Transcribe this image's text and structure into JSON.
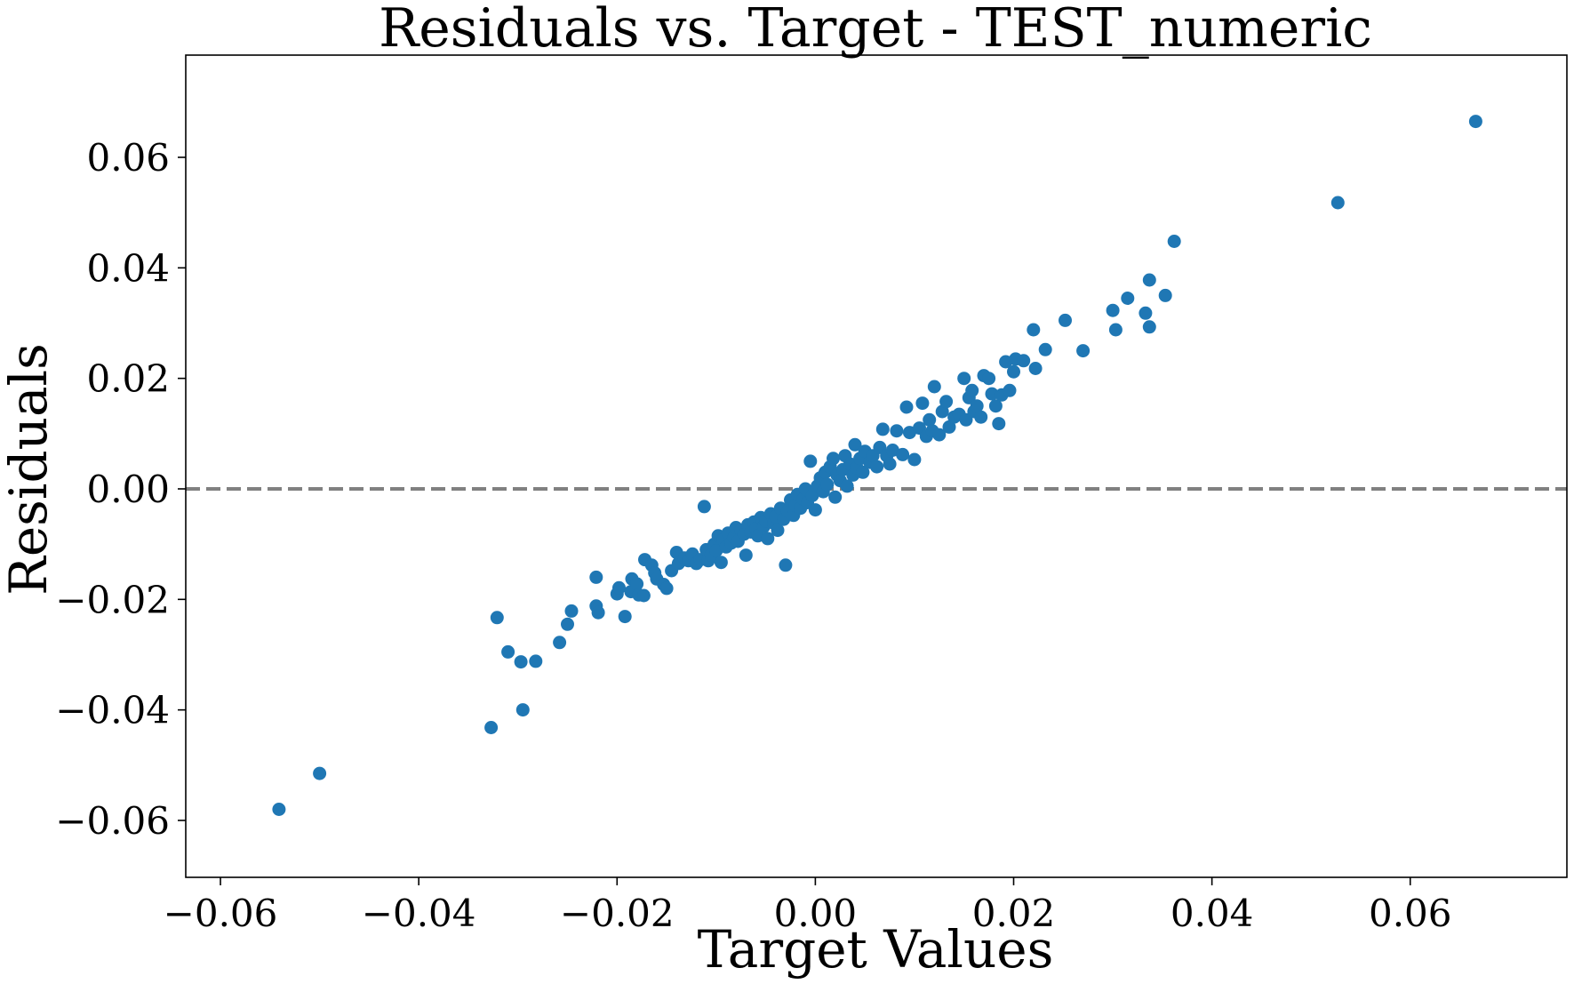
{
  "chart_data": {
    "type": "scatter",
    "title": "Residuals vs. Target - TEST_numeric",
    "xlabel": "Target Values",
    "ylabel": "Residuals",
    "xlim": [
      -0.0635,
      0.0758
    ],
    "ylim": [
      -0.0703,
      0.0785
    ],
    "xticks": [
      -0.06,
      -0.04,
      -0.02,
      0.0,
      0.02,
      0.04,
      0.06
    ],
    "yticks": [
      -0.06,
      -0.04,
      -0.02,
      0.0,
      0.02,
      0.04,
      0.06
    ],
    "xtick_labels": [
      "−0.06",
      "−0.04",
      "−0.02",
      "0.00",
      "0.02",
      "0.04",
      "0.06"
    ],
    "ytick_labels": [
      "−0.06",
      "−0.04",
      "−0.02",
      "0.00",
      "0.02",
      "0.04",
      "0.06"
    ],
    "grid": false,
    "reference_line": {
      "y": 0,
      "style": "dashed",
      "color": "#808080"
    },
    "series": [
      {
        "color": "#1f77b4",
        "points": [
          [
            -0.0541,
            -0.058
          ],
          [
            -0.05,
            -0.0515
          ],
          [
            -0.0327,
            -0.0432
          ],
          [
            -0.0321,
            -0.0233
          ],
          [
            -0.031,
            -0.0295
          ],
          [
            -0.0297,
            -0.0313
          ],
          [
            -0.0295,
            -0.04
          ],
          [
            -0.0282,
            -0.0312
          ],
          [
            -0.0258,
            -0.0278
          ],
          [
            -0.025,
            -0.0245
          ],
          [
            -0.0246,
            -0.0221
          ],
          [
            -0.0221,
            -0.016
          ],
          [
            -0.0221,
            -0.0212
          ],
          [
            -0.0219,
            -0.0224
          ],
          [
            -0.02,
            -0.019
          ],
          [
            -0.0198,
            -0.0179
          ],
          [
            -0.0192,
            -0.0231
          ],
          [
            -0.0186,
            -0.0186
          ],
          [
            -0.0185,
            -0.0163
          ],
          [
            -0.018,
            -0.0172
          ],
          [
            -0.0178,
            -0.0192
          ],
          [
            -0.0173,
            -0.0193
          ],
          [
            -0.0172,
            -0.0128
          ],
          [
            -0.0165,
            -0.0138
          ],
          [
            -0.0162,
            -0.0152
          ],
          [
            -0.016,
            -0.0163
          ],
          [
            -0.0153,
            -0.0173
          ],
          [
            -0.015,
            -0.018
          ],
          [
            -0.0145,
            -0.0148
          ],
          [
            -0.014,
            -0.0115
          ],
          [
            -0.0138,
            -0.0135
          ],
          [
            -0.0132,
            -0.0125
          ],
          [
            -0.0128,
            -0.013
          ],
          [
            -0.0124,
            -0.0118
          ],
          [
            -0.012,
            -0.0135
          ],
          [
            -0.0116,
            -0.0128
          ],
          [
            -0.0112,
            -0.0032
          ],
          [
            -0.011,
            -0.011
          ],
          [
            -0.0108,
            -0.013
          ],
          [
            -0.0105,
            -0.012
          ],
          [
            -0.0102,
            -0.01
          ],
          [
            -0.01,
            -0.0112
          ],
          [
            -0.0098,
            -0.0085
          ],
          [
            -0.0095,
            -0.0133
          ],
          [
            -0.0093,
            -0.0092
          ],
          [
            -0.009,
            -0.0105
          ],
          [
            -0.0088,
            -0.008
          ],
          [
            -0.0085,
            -0.0098
          ],
          [
            -0.0082,
            -0.0088
          ],
          [
            -0.008,
            -0.007
          ],
          [
            -0.0078,
            -0.0095
          ],
          [
            -0.0075,
            -0.0075
          ],
          [
            -0.0072,
            -0.0082
          ],
          [
            -0.007,
            -0.012
          ],
          [
            -0.0068,
            -0.0065
          ],
          [
            -0.0065,
            -0.0078
          ],
          [
            -0.0062,
            -0.006
          ],
          [
            -0.006,
            -0.0072
          ],
          [
            -0.0058,
            -0.0085
          ],
          [
            -0.0055,
            -0.0052
          ],
          [
            -0.0052,
            -0.0068
          ],
          [
            -0.005,
            -0.0058
          ],
          [
            -0.0048,
            -0.009
          ],
          [
            -0.0045,
            -0.0045
          ],
          [
            -0.0042,
            -0.0062
          ],
          [
            -0.004,
            -0.005
          ],
          [
            -0.0038,
            -0.0075
          ],
          [
            -0.0035,
            -0.0035
          ],
          [
            -0.0032,
            -0.0055
          ],
          [
            -0.003,
            -0.0138
          ],
          [
            -0.0028,
            -0.004
          ],
          [
            -0.0025,
            -0.002
          ],
          [
            -0.0022,
            -0.0048
          ],
          [
            -0.002,
            -0.003
          ],
          [
            -0.0018,
            -0.001
          ],
          [
            -0.0015,
            -0.0035
          ],
          [
            -0.0012,
            -0.0018
          ],
          [
            -0.001,
            0.0
          ],
          [
            -0.0008,
            -0.0025
          ],
          [
            -0.0005,
            0.005
          ],
          [
            -0.0003,
            -0.0012
          ],
          [
            0.0,
            -0.0038
          ],
          [
            0.0002,
            0.0005
          ],
          [
            0.0005,
            0.002
          ],
          [
            0.0008,
            -0.0005
          ],
          [
            0.001,
            0.003
          ],
          [
            0.0012,
            0.0008
          ],
          [
            0.0015,
            0.004
          ],
          [
            0.0018,
            0.0055
          ],
          [
            0.002,
            -0.0015
          ],
          [
            0.0022,
            0.0025
          ],
          [
            0.0025,
            0.0015
          ],
          [
            0.0028,
            0.0035
          ],
          [
            0.003,
            0.006
          ],
          [
            0.0032,
            0.0005
          ],
          [
            0.0035,
            0.0045
          ],
          [
            0.0038,
            0.0025
          ],
          [
            0.004,
            0.008
          ],
          [
            0.0042,
            0.0038
          ],
          [
            0.0045,
            0.0055
          ],
          [
            0.0048,
            0.003
          ],
          [
            0.005,
            0.0068
          ],
          [
            0.0055,
            0.0048
          ],
          [
            0.0058,
            0.006
          ],
          [
            0.0062,
            0.004
          ],
          [
            0.0065,
            0.0075
          ],
          [
            0.0068,
            0.0108
          ],
          [
            0.0072,
            0.006
          ],
          [
            0.0075,
            0.0045
          ],
          [
            0.0078,
            0.007
          ],
          [
            0.0082,
            0.0105
          ],
          [
            0.0088,
            0.0062
          ],
          [
            0.0092,
            0.0148
          ],
          [
            0.0095,
            0.0102
          ],
          [
            0.01,
            0.0053
          ],
          [
            0.0105,
            0.011
          ],
          [
            0.0108,
            0.0155
          ],
          [
            0.0112,
            0.0095
          ],
          [
            0.0115,
            0.0125
          ],
          [
            0.0118,
            0.0105
          ],
          [
            0.012,
            0.0185
          ],
          [
            0.0125,
            0.0098
          ],
          [
            0.0128,
            0.014
          ],
          [
            0.0132,
            0.0158
          ],
          [
            0.0135,
            0.0112
          ],
          [
            0.014,
            0.013
          ],
          [
            0.0145,
            0.0135
          ],
          [
            0.015,
            0.02
          ],
          [
            0.0152,
            0.0125
          ],
          [
            0.0155,
            0.0165
          ],
          [
            0.0158,
            0.0178
          ],
          [
            0.016,
            0.014
          ],
          [
            0.0163,
            0.015
          ],
          [
            0.0167,
            0.013
          ],
          [
            0.017,
            0.0205
          ],
          [
            0.0175,
            0.02
          ],
          [
            0.0178,
            0.0172
          ],
          [
            0.0182,
            0.015
          ],
          [
            0.0185,
            0.0118
          ],
          [
            0.0188,
            0.017
          ],
          [
            0.0192,
            0.023
          ],
          [
            0.0196,
            0.0178
          ],
          [
            0.02,
            0.0212
          ],
          [
            0.0202,
            0.0235
          ],
          [
            0.021,
            0.0232
          ],
          [
            0.022,
            0.0288
          ],
          [
            0.0222,
            0.0218
          ],
          [
            0.0232,
            0.0252
          ],
          [
            0.0252,
            0.0305
          ],
          [
            0.027,
            0.025
          ],
          [
            0.03,
            0.0323
          ],
          [
            0.0303,
            0.0288
          ],
          [
            0.0315,
            0.0345
          ],
          [
            0.0333,
            0.0318
          ],
          [
            0.0337,
            0.0378
          ],
          [
            0.0337,
            0.0293
          ],
          [
            0.0353,
            0.035
          ],
          [
            0.0362,
            0.0448
          ],
          [
            0.0527,
            0.0518
          ],
          [
            0.0666,
            0.0665
          ]
        ]
      }
    ]
  }
}
